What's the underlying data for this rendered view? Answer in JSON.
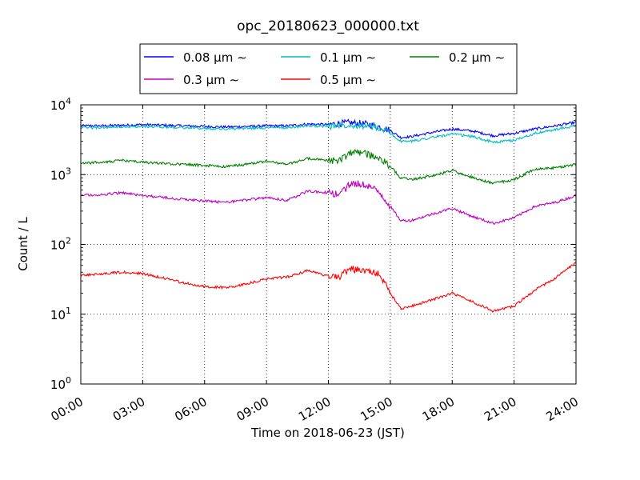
{
  "chart_data": {
    "type": "line",
    "title": "opc_20180623_000000.txt",
    "xlabel": "Time on 2018-06-23 (JST)",
    "ylabel": "Count / L",
    "y_scale": "log",
    "ylim": [
      1,
      10000
    ],
    "xlim": [
      "2018-06-23 00:00",
      "2018-06-24 00:00"
    ],
    "grid": true,
    "legend_position": "top-center",
    "x_tick_labels": [
      "00:00",
      "03:00",
      "06:00",
      "09:00",
      "12:00",
      "15:00",
      "18:00",
      "21:00",
      "24:00"
    ],
    "y_tick_labels": [
      {
        "base": "10",
        "exp": "0"
      },
      {
        "base": "10",
        "exp": "1"
      },
      {
        "base": "10",
        "exp": "2"
      },
      {
        "base": "10",
        "exp": "3"
      },
      {
        "base": "10",
        "exp": "4"
      }
    ],
    "x": [
      "00:00",
      "01:00",
      "02:00",
      "03:00",
      "04:00",
      "05:00",
      "06:00",
      "07:00",
      "08:00",
      "09:00",
      "10:00",
      "11:00",
      "12:00",
      "12:30",
      "13:00",
      "13:30",
      "14:00",
      "14:30",
      "15:00",
      "15:30",
      "16:00",
      "17:00",
      "18:00",
      "19:00",
      "20:00",
      "21:00",
      "22:00",
      "23:00",
      "24:00"
    ],
    "series": [
      {
        "name": "0.08 μm ∼",
        "color": "#0000ff",
        "values": [
          5000,
          5000,
          5100,
          5200,
          5100,
          5000,
          4900,
          4800,
          4900,
          5000,
          5000,
          5300,
          5200,
          5400,
          5500,
          5400,
          5200,
          4800,
          4300,
          3400,
          3500,
          4000,
          4500,
          4200,
          3600,
          3900,
          4500,
          5000,
          5600
        ]
      },
      {
        "name": "0.1 μm ∼",
        "color": "#00bfbf",
        "values": [
          4700,
          4700,
          4800,
          4900,
          4800,
          4700,
          4600,
          4500,
          4600,
          4700,
          4700,
          5000,
          4900,
          5100,
          5200,
          5100,
          4900,
          4500,
          3900,
          3000,
          3000,
          3400,
          3800,
          3500,
          2900,
          3100,
          3900,
          4400,
          5000
        ]
      },
      {
        "name": "0.2 μm ∼",
        "color": "#008000",
        "values": [
          1450,
          1500,
          1600,
          1500,
          1450,
          1400,
          1350,
          1300,
          1400,
          1550,
          1400,
          1700,
          1600,
          1550,
          2000,
          2100,
          1900,
          1700,
          1300,
          900,
          850,
          950,
          1150,
          900,
          750,
          850,
          1200,
          1250,
          1400
        ]
      },
      {
        "name": "0.3 μm ∼",
        "color": "#bf00bf",
        "values": [
          500,
          520,
          550,
          500,
          470,
          440,
          420,
          400,
          430,
          470,
          430,
          580,
          550,
          520,
          700,
          750,
          680,
          550,
          350,
          220,
          220,
          270,
          330,
          250,
          200,
          240,
          350,
          400,
          500
        ]
      },
      {
        "name": "0.5 μm ∼",
        "color": "#ff0000",
        "values": [
          36,
          38,
          40,
          38,
          33,
          28,
          25,
          24,
          27,
          32,
          34,
          42,
          35,
          33,
          45,
          43,
          40,
          37,
          20,
          12,
          13,
          16,
          20,
          15,
          11,
          13,
          22,
          33,
          55
        ]
      }
    ]
  }
}
